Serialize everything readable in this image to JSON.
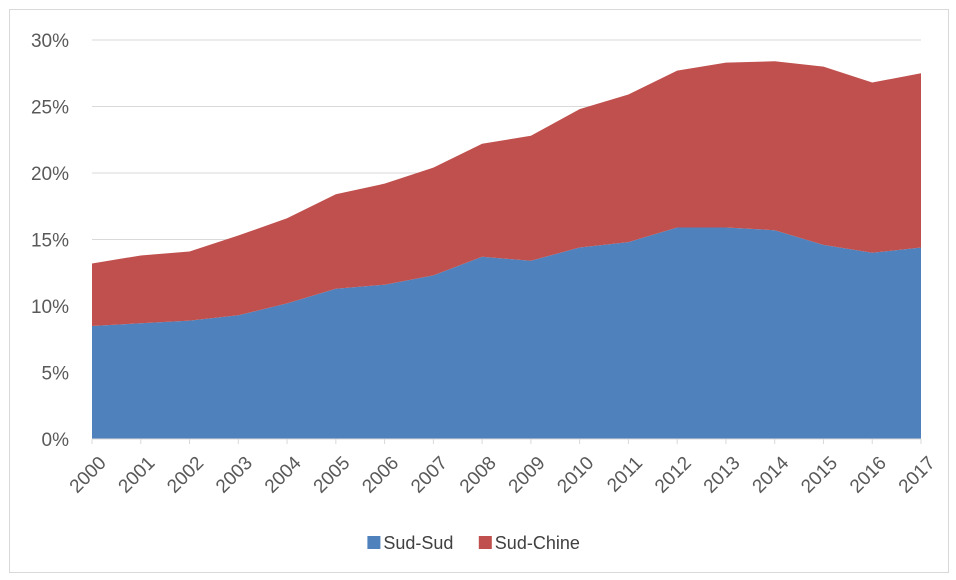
{
  "chart_data": {
    "type": "area",
    "stacked": true,
    "x": [
      "2000",
      "2001",
      "2002",
      "2003",
      "2004",
      "2005",
      "2006",
      "2007",
      "2008",
      "2009",
      "2010",
      "2011",
      "2012",
      "2013",
      "2014",
      "2015",
      "2016",
      "2017"
    ],
    "series": [
      {
        "name": "Sud-Sud",
        "color": "#4f81bd",
        "values": [
          8.5,
          8.7,
          8.9,
          9.3,
          10.2,
          11.3,
          11.6,
          12.3,
          13.7,
          13.4,
          14.4,
          14.8,
          15.9,
          15.9,
          15.7,
          14.6,
          14.0,
          14.4
        ]
      },
      {
        "name": "Sud-Chine",
        "color": "#c0504d",
        "values": [
          4.7,
          5.1,
          5.2,
          6.0,
          6.4,
          7.1,
          7.6,
          8.1,
          8.5,
          9.4,
          10.4,
          11.1,
          11.8,
          12.4,
          12.7,
          13.4,
          12.8,
          13.1
        ]
      }
    ],
    "y_ticks": [
      "0%",
      "5%",
      "10%",
      "15%",
      "20%",
      "25%",
      "30%"
    ],
    "ylim": [
      0,
      30
    ],
    "y_unit": "%",
    "grid": true,
    "legend_position": "bottom",
    "title": "",
    "xlabel": "",
    "ylabel": ""
  }
}
